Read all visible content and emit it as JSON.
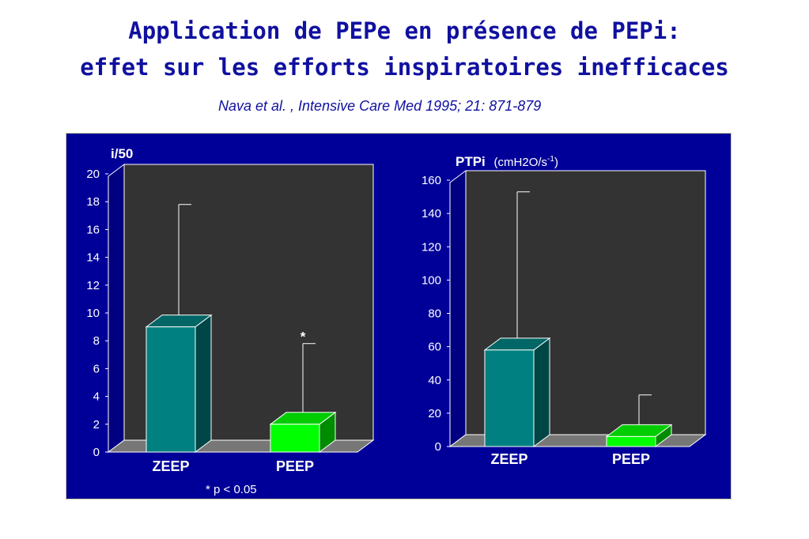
{
  "title": {
    "line1": "Application de PEPe en présence de PEPi:",
    "line2": "effet sur les efforts inspiratoires inefficaces",
    "citation": "Nava et al. , Intensive Care Med 1995; 21: 871-879"
  },
  "colors": {
    "panel_bg": "#000099",
    "plot_bg": "#333333",
    "floor": "#777777",
    "zeep": "#008080",
    "peep": "#00ff00",
    "text": "#ffffff",
    "title": "#1010a0"
  },
  "chart_data": [
    {
      "type": "bar",
      "title": "i/50",
      "categories": [
        "ZEEP",
        "PEEP"
      ],
      "values": [
        9,
        2
      ],
      "error_upper": [
        17.8,
        7.8
      ],
      "ylim": [
        0,
        20
      ],
      "yticks": [
        0,
        2,
        4,
        6,
        8,
        10,
        12,
        14,
        16,
        18,
        20
      ],
      "annotations": [
        "",
        "*"
      ],
      "footnote": "* p < 0.05",
      "grid": false
    },
    {
      "type": "bar",
      "title": "PTPi",
      "subtitle": "(cmH2O/s",
      "subtitle_sup": "-1",
      "subtitle_end": ")",
      "categories": [
        "ZEEP",
        "PEEP"
      ],
      "values": [
        58,
        6
      ],
      "error_upper": [
        153,
        31
      ],
      "ylim": [
        0,
        160
      ],
      "yticks": [
        0,
        20,
        40,
        60,
        80,
        100,
        120,
        140,
        160
      ],
      "grid": false
    }
  ]
}
